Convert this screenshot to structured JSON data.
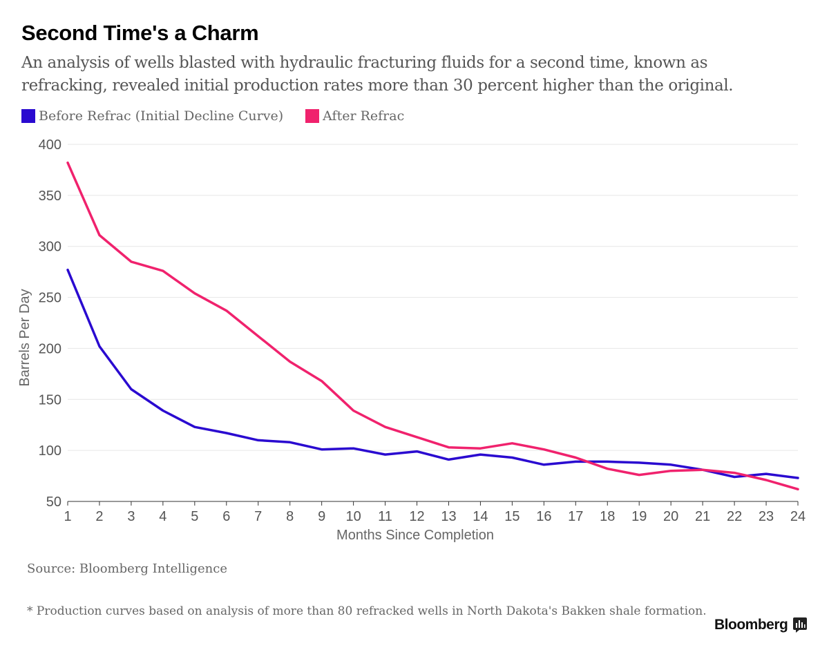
{
  "title": "Second Time's a Charm",
  "subtitle": "An analysis of wells blasted with hydraulic fracturing fluids for a second time, known as refracking, revealed initial production rates more than 30 percent higher than the original.",
  "source": "Source: Bloomberg Intelligence",
  "footnote": "* Production curves based on analysis of more than 80 refracked wells in North Dakota's Bakken shale formation.",
  "brand": "Bloomberg",
  "colors": {
    "before": "#2a0ad0",
    "after": "#f0226d",
    "grid": "#e6e6e6",
    "axis": "#333333"
  },
  "chart_data": {
    "type": "line",
    "xlabel": "Months Since Completion",
    "ylabel": "Barrels Per Day",
    "ylim": [
      50,
      400
    ],
    "yticks": [
      50,
      100,
      150,
      200,
      250,
      300,
      350,
      400
    ],
    "x": [
      1,
      2,
      3,
      4,
      5,
      6,
      7,
      8,
      9,
      10,
      11,
      12,
      13,
      14,
      15,
      16,
      17,
      18,
      19,
      20,
      21,
      22,
      23,
      24
    ],
    "series": [
      {
        "name": "Before Refrac (Initial Decline Curve)",
        "color": "#2a0ad0",
        "values": [
          277,
          202,
          160,
          139,
          123,
          117,
          110,
          108,
          101,
          102,
          96,
          99,
          91,
          96,
          93,
          86,
          89,
          89,
          88,
          86,
          81,
          74,
          77,
          73
        ]
      },
      {
        "name": "After Refrac",
        "color": "#f0226d",
        "values": [
          382,
          311,
          285,
          276,
          254,
          237,
          212,
          187,
          168,
          139,
          123,
          113,
          103,
          102,
          107,
          101,
          93,
          82,
          76,
          80,
          81,
          78,
          71,
          62
        ]
      }
    ]
  }
}
